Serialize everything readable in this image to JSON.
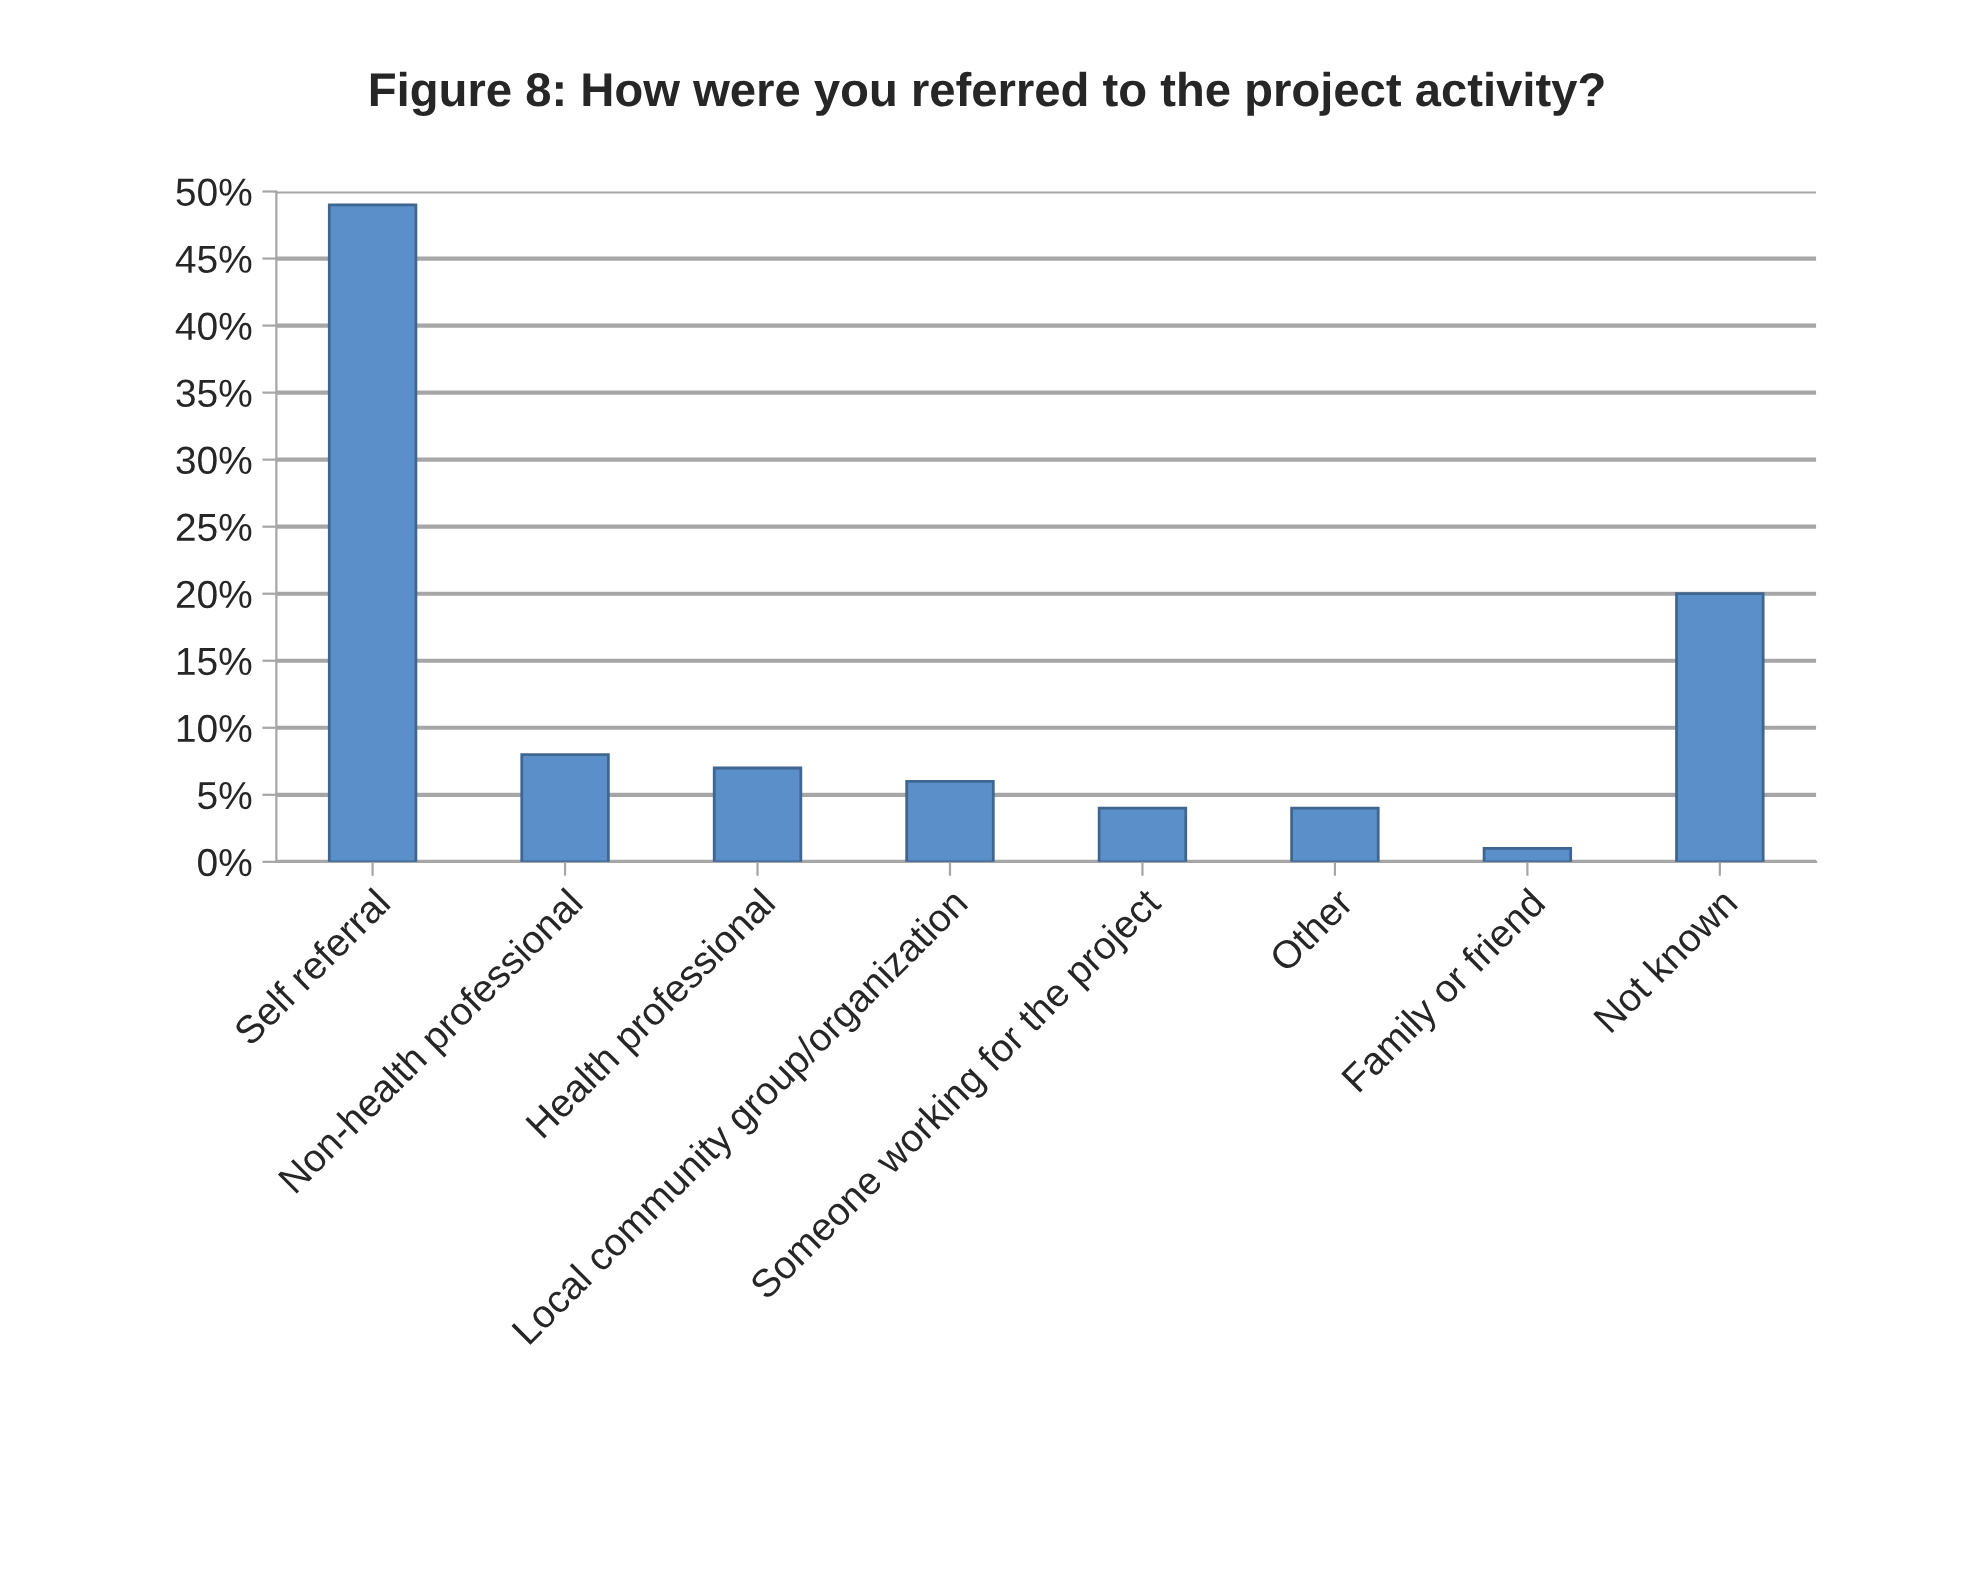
{
  "chart_data": {
    "type": "bar",
    "title": "Figure 8: How were you referred to the project activity?",
    "categories": [
      "Self referral",
      "Non-health professional",
      "Health professional",
      "Local community group/organization",
      "Someone working for the project",
      "Other",
      "Family or friend",
      "Not known"
    ],
    "values": [
      49,
      8,
      7,
      6,
      4,
      4,
      1,
      20
    ],
    "color": "#5b8fc9",
    "ylim": [
      0,
      50
    ],
    "yticks": [
      {
        "value": 0,
        "label": "0%"
      },
      {
        "value": 5,
        "label": "5%"
      },
      {
        "value": 10,
        "label": "10%"
      },
      {
        "value": 15,
        "label": "15%"
      },
      {
        "value": 20,
        "label": "20%"
      },
      {
        "value": 25,
        "label": "25%"
      },
      {
        "value": 30,
        "label": "30%"
      },
      {
        "value": 35,
        "label": "35%"
      },
      {
        "value": 40,
        "label": "40%"
      },
      {
        "value": 45,
        "label": "45%"
      },
      {
        "value": 50,
        "label": "50%"
      }
    ],
    "grid": "y"
  }
}
